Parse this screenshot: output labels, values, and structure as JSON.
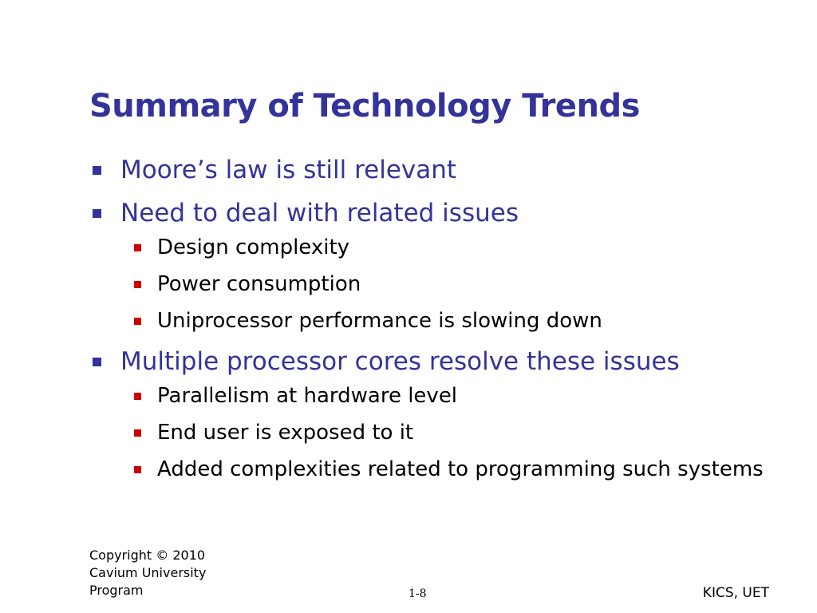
{
  "slide": {
    "title": "Summary of Technology Trends",
    "bullets": [
      {
        "text": "Moore’s law is still relevant",
        "sub": []
      },
      {
        "text": "Need to deal with related issues",
        "sub": [
          "Design complexity",
          "Power consumption",
          "Uniprocessor performance is slowing down"
        ]
      },
      {
        "text": "Multiple processor cores resolve these issues",
        "sub": [
          "Parallelism at hardware level",
          "End user is exposed to it",
          "Added complexities related to programming such systems"
        ]
      }
    ]
  },
  "footer": {
    "copyright_lines": [
      "Copyright © 2010",
      "Cavium University",
      "Program"
    ],
    "page_number": "1-8",
    "org": "KICS, UET"
  },
  "colors": {
    "title": "#333399",
    "level1_text": "#333399",
    "level1_bullet": "#333399",
    "level2_bullet": "#cc0000"
  }
}
